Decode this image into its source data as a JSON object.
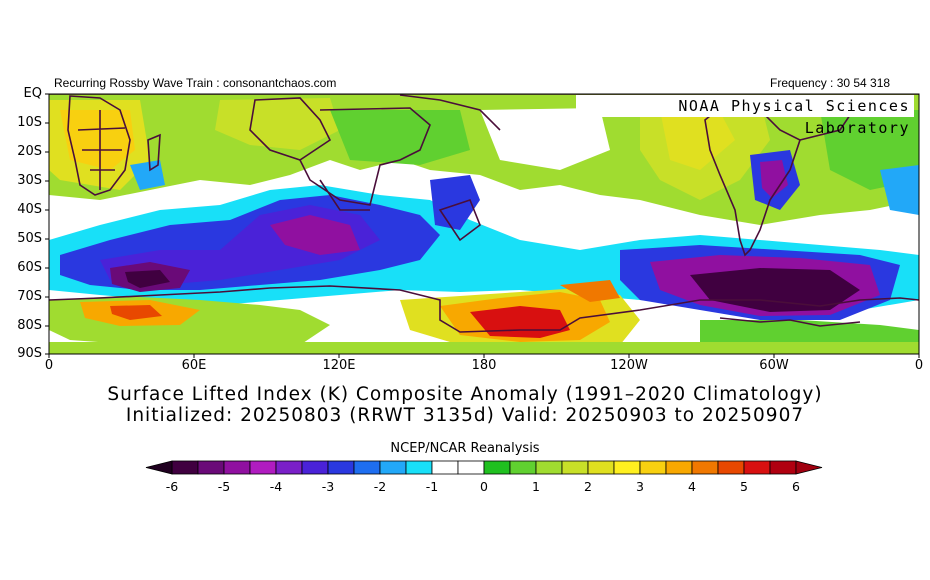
{
  "header": {
    "left_text": "Recurring Rossby Wave Train : consonantchaos.com",
    "right_text": "Frequency : 30 54 318",
    "lab_label": "NOAA Physical Sciences Laboratory"
  },
  "title": {
    "line1": "Surface Lifted Index (K) Composite Anomaly (1991–2020 Climatology)",
    "line2": "Initialized: 20250803 (RRWT 3135d) Valid: 20250903 to 20250907"
  },
  "source": "NCEP/NCAR Reanalysis",
  "map": {
    "lat_labels": [
      "EQ",
      "10S",
      "20S",
      "30S",
      "40S",
      "50S",
      "60S",
      "70S",
      "80S",
      "90S"
    ],
    "lon_labels": [
      "0",
      "60E",
      "120E",
      "180",
      "120W",
      "60W",
      "0"
    ],
    "coastline_color": "#4a0e3a",
    "features": [
      {
        "kind": "negative-core",
        "lon": 40,
        "lat": -63,
        "value": -6
      },
      {
        "kind": "negative-core",
        "lon": 270,
        "lat": -68,
        "value": -6
      },
      {
        "kind": "negative",
        "lon": 115,
        "lat": -45,
        "value": -4
      },
      {
        "kind": "negative",
        "lon": 300,
        "lat": -30,
        "value": -4
      },
      {
        "kind": "positive-core",
        "lon": 195,
        "lat": -80,
        "value": 6
      },
      {
        "kind": "positive",
        "lon": 45,
        "lat": -76,
        "value": 5
      },
      {
        "kind": "positive",
        "lon": 235,
        "lat": -67,
        "value": 4
      },
      {
        "kind": "positive",
        "lon": 25,
        "lat": -20,
        "value": 3
      }
    ]
  },
  "colorbar": {
    "labels": [
      "-6",
      "-5",
      "-4",
      "-3",
      "-2",
      "-1",
      "0",
      "1",
      "2",
      "3",
      "4",
      "5",
      "6"
    ],
    "colors": [
      "#400040",
      "#6a0a78",
      "#9010a0",
      "#b01cc0",
      "#7a20c8",
      "#4a22d8",
      "#2a38e0",
      "#1e6ef0",
      "#22a8f8",
      "#18e0f8",
      "#ffffff",
      "#ffffff",
      "#20c020",
      "#60d030",
      "#a0dc30",
      "#c8e028",
      "#e0e020",
      "#fff020",
      "#f8d010",
      "#f8a800",
      "#f07800",
      "#e84800",
      "#d81010",
      "#b00010"
    ],
    "under_color": "#200020",
    "over_color": "#a00010"
  }
}
